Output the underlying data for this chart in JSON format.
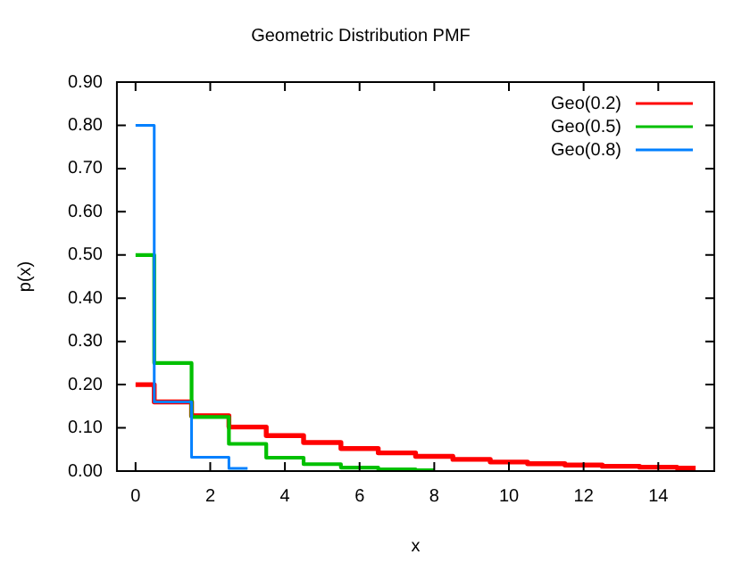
{
  "chart_data": {
    "type": "step",
    "title": "Geometric Distribution PMF",
    "xlabel": "x",
    "ylabel": "p(x)",
    "xlim": [
      -0.5,
      15.5
    ],
    "xticks": [
      0,
      2,
      4,
      6,
      8,
      10,
      12,
      14
    ],
    "ylim": [
      0,
      0.9
    ],
    "yticks": [
      {
        "value": 0,
        "label": "0.00"
      },
      {
        "value": 0.1,
        "label": "0.10"
      },
      {
        "value": 0.2,
        "label": "0.20"
      },
      {
        "value": 0.3,
        "label": "0.30"
      },
      {
        "value": 0.4,
        "label": "0.40"
      },
      {
        "value": 0.5,
        "label": "0.50"
      },
      {
        "value": 0.6,
        "label": "0.60"
      },
      {
        "value": 0.7,
        "label": "0.70"
      },
      {
        "value": 0.8,
        "label": "0.80"
      },
      {
        "value": 0.9,
        "label": "0.90"
      }
    ],
    "grid": false,
    "legend": "top right",
    "series": [
      {
        "name": "Geo(0.2)",
        "color": "#ff0000",
        "x": [
          0,
          1,
          2,
          3,
          4,
          5,
          6,
          7,
          8,
          9,
          10,
          11,
          12,
          13,
          14,
          15
        ],
        "values": [
          0.2,
          0.16,
          0.128,
          0.102,
          0.082,
          0.066,
          0.052,
          0.042,
          0.034,
          0.027,
          0.021,
          0.017,
          0.014,
          0.011,
          0.009,
          0.007
        ]
      },
      {
        "name": "Geo(0.5)",
        "color": "#00c000",
        "x": [
          0,
          1,
          2,
          3,
          4,
          5,
          6,
          7,
          8
        ],
        "values": [
          0.5,
          0.25,
          0.125,
          0.063,
          0.031,
          0.016,
          0.008,
          0.004,
          0.002
        ]
      },
      {
        "name": "Geo(0.8)",
        "color": "#0080ff",
        "x": [
          0,
          1,
          2,
          3
        ],
        "values": [
          0.8,
          0.16,
          0.032,
          0.006
        ]
      }
    ]
  }
}
